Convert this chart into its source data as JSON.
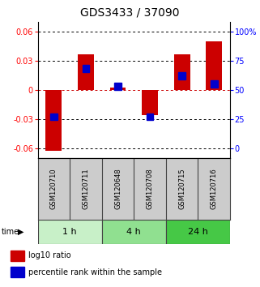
{
  "title": "GDS3433 / 37090",
  "samples": [
    "GSM120710",
    "GSM120711",
    "GSM120648",
    "GSM120708",
    "GSM120715",
    "GSM120716"
  ],
  "log10_ratios": [
    -0.063,
    0.036,
    0.002,
    -0.026,
    0.036,
    0.05
  ],
  "percentile_ranks": [
    27,
    68,
    53,
    27,
    62,
    55
  ],
  "groups": [
    {
      "label": "1 h",
      "indices": [
        0,
        1
      ],
      "color": "#c8f0c8"
    },
    {
      "label": "4 h",
      "indices": [
        2,
        3
      ],
      "color": "#90e090"
    },
    {
      "label": "24 h",
      "indices": [
        4,
        5
      ],
      "color": "#46c846"
    }
  ],
  "ylim": [
    -0.07,
    0.07
  ],
  "yticks_left": [
    -0.06,
    -0.03,
    0,
    0.03,
    0.06
  ],
  "yticks_right": [
    0,
    25,
    50,
    75,
    100
  ],
  "bar_color": "#cc0000",
  "percentile_color": "#0000cc",
  "bar_width": 0.5,
  "background_color": "#ffffff",
  "grid_color": "#000000",
  "zero_line_color": "#cc0000",
  "title_fontsize": 10,
  "tick_fontsize": 7,
  "sample_fontsize": 6,
  "time_fontsize": 8,
  "legend_fontsize": 7
}
